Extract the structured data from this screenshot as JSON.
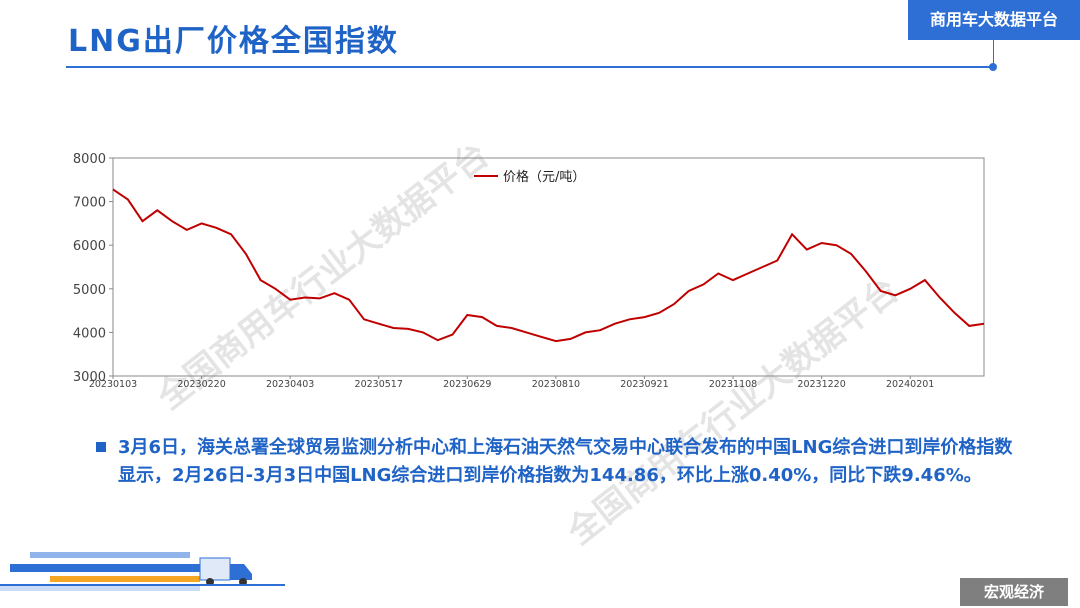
{
  "header": {
    "title": "LNG出厂价格全国指数",
    "badge": "商用车大数据平台"
  },
  "chart_data": {
    "type": "line",
    "categories": [
      "20230103",
      null,
      null,
      null,
      null,
      null,
      "20230220",
      null,
      null,
      null,
      null,
      null,
      "20230403",
      null,
      null,
      null,
      null,
      null,
      "20230517",
      null,
      null,
      null,
      null,
      null,
      "20230629",
      null,
      null,
      null,
      null,
      null,
      "20230810",
      null,
      null,
      null,
      null,
      null,
      "20230921",
      null,
      null,
      null,
      null,
      null,
      "20231108",
      null,
      null,
      null,
      null,
      null,
      "20231220",
      null,
      null,
      null,
      null,
      null,
      "20240201",
      null,
      null,
      null,
      null,
      null
    ],
    "series": [
      {
        "name": "价格（元/吨）",
        "color": "#c00000",
        "values": [
          7280,
          7050,
          6550,
          6800,
          6550,
          6350,
          6500,
          6400,
          6250,
          5800,
          5200,
          5000,
          4750,
          4800,
          4780,
          4900,
          4750,
          4300,
          4200,
          4100,
          4080,
          4000,
          3820,
          3950,
          4400,
          4350,
          4150,
          4100,
          4000,
          3900,
          3800,
          3850,
          4000,
          4050,
          4200,
          4300,
          4350,
          4450,
          4650,
          4950,
          5100,
          5350,
          5200,
          5350,
          5500,
          5650,
          6250,
          5900,
          6050,
          6000,
          5800,
          5400,
          4950,
          4850,
          5000,
          5200,
          4800,
          4450,
          4150,
          4200
        ]
      }
    ],
    "ylim": [
      3000,
      8000
    ],
    "yticks": [
      3000,
      4000,
      5000,
      6000,
      7000,
      8000
    ],
    "watermarks": [
      "全国商用车行业大数据平台",
      "全国商用车行业大数据平台"
    ]
  },
  "bullet": {
    "text": "3月6日，海关总署全球贸易监测分析中心和上海石油天然气交易中心联合发布的中国LNG综合进口到岸价格指数显示，2月26日-3月3日中国LNG综合进口到岸价格指数为144.86，环比上涨0.40%，同比下跌9.46%。"
  },
  "footer": {
    "section": "宏观经济"
  }
}
